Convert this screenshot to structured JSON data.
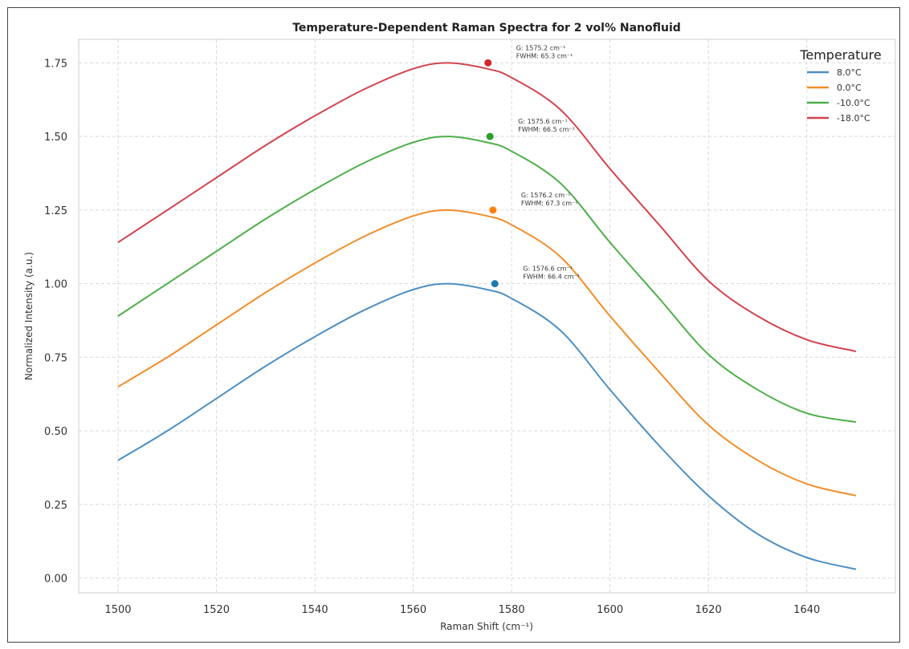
{
  "chart_data": {
    "type": "line",
    "title": "Temperature-Dependent Raman Spectra for 2 vol% Nanofluid",
    "xlabel": "Raman Shift (cm⁻¹)",
    "ylabel": "Normalized Intensity (a.u.)",
    "xlim": [
      1492,
      1658
    ],
    "ylim": [
      -0.05,
      1.83
    ],
    "xticks": [
      1500,
      1520,
      1540,
      1560,
      1580,
      1600,
      1620,
      1640
    ],
    "yticks": [
      0.0,
      0.25,
      0.5,
      0.75,
      1.0,
      1.25,
      1.5,
      1.75
    ],
    "ytick_labels": [
      "0.00",
      "0.25",
      "0.50",
      "0.75",
      "1.00",
      "1.25",
      "1.50",
      "1.75"
    ],
    "grid": true,
    "legend": {
      "title": "Temperature",
      "placement": "top-right"
    },
    "series": [
      {
        "name": "8.0°C",
        "color": "#4c8fc4",
        "x": [
          1500,
          1510,
          1520,
          1530,
          1540,
          1550,
          1560,
          1567,
          1575,
          1580,
          1590,
          1600,
          1610,
          1620,
          1630,
          1640,
          1650
        ],
        "y": [
          0.4,
          0.5,
          0.61,
          0.72,
          0.82,
          0.91,
          0.98,
          1.0,
          0.98,
          0.95,
          0.84,
          0.64,
          0.45,
          0.28,
          0.15,
          0.07,
          0.03
        ],
        "peak": {
          "x": 1576.6,
          "y": 1.0,
          "marker_color": "#1f77b4",
          "label_lines": [
            "G: 1576.6 cm⁻¹",
            "FWHM: 66.4 cm⁻¹"
          ]
        }
      },
      {
        "name": "0.0°C",
        "color": "#f28e2b",
        "x": [
          1500,
          1510,
          1520,
          1530,
          1540,
          1550,
          1560,
          1567,
          1575,
          1580,
          1590,
          1600,
          1610,
          1620,
          1630,
          1640,
          1650
        ],
        "y": [
          0.65,
          0.75,
          0.86,
          0.97,
          1.07,
          1.16,
          1.23,
          1.25,
          1.23,
          1.2,
          1.09,
          0.89,
          0.7,
          0.52,
          0.4,
          0.32,
          0.28
        ],
        "peak": {
          "x": 1576.2,
          "y": 1.25,
          "marker_color": "#ff7f0e",
          "label_lines": [
            "G: 1576.2 cm⁻¹",
            "FWHM: 67.3 cm⁻¹"
          ]
        }
      },
      {
        "name": "-10.0°C",
        "color": "#4daf4a",
        "x": [
          1500,
          1510,
          1520,
          1530,
          1540,
          1550,
          1560,
          1567,
          1575,
          1580,
          1590,
          1600,
          1610,
          1620,
          1630,
          1640,
          1650
        ],
        "y": [
          0.89,
          1.0,
          1.11,
          1.22,
          1.32,
          1.41,
          1.48,
          1.5,
          1.48,
          1.45,
          1.34,
          1.14,
          0.95,
          0.76,
          0.64,
          0.56,
          0.53
        ],
        "peak": {
          "x": 1575.6,
          "y": 1.5,
          "marker_color": "#2ca02c",
          "label_lines": [
            "G: 1575.6 cm⁻¹",
            "FWHM: 66.5 cm⁻¹"
          ]
        }
      },
      {
        "name": "-18.0°C",
        "color": "#d1454f",
        "x": [
          1500,
          1510,
          1520,
          1530,
          1540,
          1550,
          1560,
          1567,
          1575,
          1580,
          1590,
          1600,
          1610,
          1620,
          1630,
          1640,
          1650
        ],
        "y": [
          1.14,
          1.25,
          1.36,
          1.47,
          1.57,
          1.66,
          1.73,
          1.75,
          1.73,
          1.7,
          1.59,
          1.39,
          1.2,
          1.01,
          0.89,
          0.81,
          0.77
        ],
        "peak": {
          "x": 1575.2,
          "y": 1.75,
          "marker_color": "#d62728",
          "label_lines": [
            "G: 1575.2 cm⁻¹",
            "FWHM: 65.3 cm⁻¹"
          ]
        }
      }
    ]
  }
}
